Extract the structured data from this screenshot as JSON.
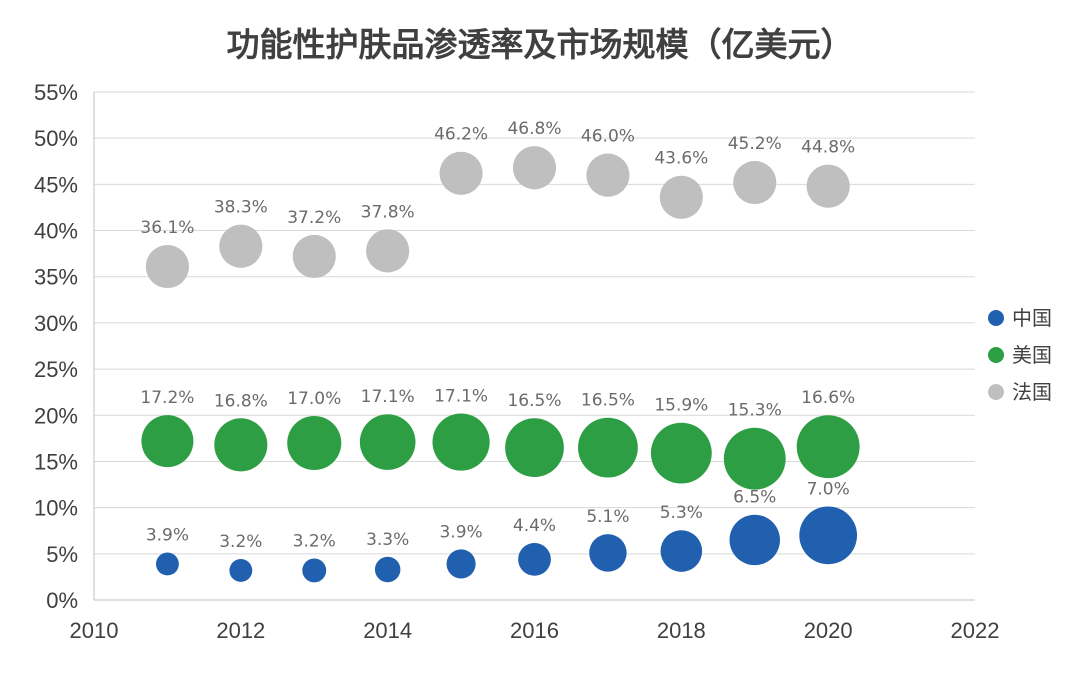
{
  "chart_data": {
    "type": "bubble",
    "title": "功能性护肤品渗透率及市场规模（亿美元）",
    "xlabel": "",
    "ylabel": "",
    "xlim": [
      2010,
      2022
    ],
    "xticks": [
      "2010",
      "2012",
      "2014",
      "2016",
      "2018",
      "2020",
      "2022"
    ],
    "ylim": [
      0,
      55
    ],
    "yticks": [
      "0%",
      "5%",
      "10%",
      "15%",
      "20%",
      "25%",
      "30%",
      "35%",
      "40%",
      "45%",
      "50%",
      "55%"
    ],
    "grid": true,
    "legend": "right",
    "x": [
      2011,
      2012,
      2013,
      2014,
      2015,
      2016,
      2017,
      2018,
      2019,
      2020
    ],
    "series": [
      {
        "name": "中国",
        "color": "#2160ae",
        "values": [
          3.9,
          3.2,
          3.2,
          3.3,
          3.9,
          4.4,
          5.1,
          5.3,
          6.5,
          7.0
        ],
        "labels": [
          "3.9%",
          "3.2%",
          "3.2%",
          "3.3%",
          "3.9%",
          "4.4%",
          "5.1%",
          "5.3%",
          "6.5%",
          "7.0%"
        ],
        "bubble_size": [
          0.44,
          0.44,
          0.46,
          0.49,
          0.56,
          0.63,
          0.72,
          0.8,
          0.97,
          1.11
        ]
      },
      {
        "name": "美国",
        "color": "#2e9e44",
        "values": [
          17.2,
          16.8,
          17.0,
          17.1,
          17.1,
          16.5,
          16.5,
          15.9,
          15.3,
          16.6
        ],
        "labels": [
          "17.2%",
          "16.8%",
          "17.0%",
          "17.1%",
          "17.1%",
          "16.5%",
          "16.5%",
          "15.9%",
          "15.3%",
          "16.6%"
        ],
        "bubble_size": [
          1.0,
          1.02,
          1.04,
          1.07,
          1.1,
          1.13,
          1.15,
          1.17,
          1.19,
          1.21
        ]
      },
      {
        "name": "法国",
        "color": "#bfbfbf",
        "values": [
          36.1,
          38.3,
          37.2,
          37.8,
          46.2,
          46.8,
          46.0,
          43.6,
          45.2,
          44.8
        ],
        "labels": [
          "36.1%",
          "38.3%",
          "37.2%",
          "37.8%",
          "46.2%",
          "46.8%",
          "46.0%",
          "43.6%",
          "45.2%",
          "44.8%"
        ],
        "bubble_size": [
          0.83,
          0.83,
          0.83,
          0.83,
          0.83,
          0.83,
          0.83,
          0.83,
          0.83,
          0.83
        ]
      }
    ]
  }
}
